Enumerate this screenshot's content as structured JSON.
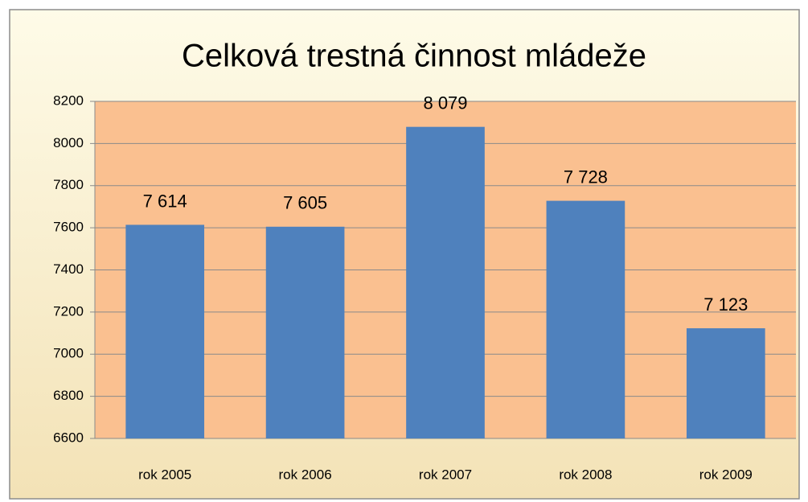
{
  "chart_data": {
    "type": "bar",
    "title": "Celková trestná činnost mládeže",
    "categories": [
      "rok 2005",
      "rok 2006",
      "rok 2007",
      "rok 2008",
      "rok 2009"
    ],
    "values": [
      7614,
      7605,
      8079,
      7728,
      7123
    ],
    "value_labels": [
      "7 614",
      "7 605",
      "8 079",
      "7 728",
      "7 123"
    ],
    "color": "#4f81bd",
    "ylim": [
      6600,
      8200
    ],
    "yticks": [
      6600,
      6800,
      7000,
      7200,
      7400,
      7600,
      7800,
      8000,
      8200
    ],
    "grid": true
  }
}
